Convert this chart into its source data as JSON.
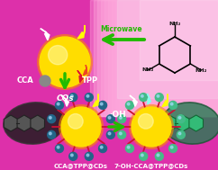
{
  "bg_magenta": "#dd30aa",
  "bg_light_pink": "#f0a8d8",
  "sphere_color": "#ffdd00",
  "sphere_highlight": "#ffffaa",
  "spike_color": "#cc1133",
  "dot_color": "#226688",
  "dot_color2": "#44bb88",
  "arrow_green": "#22bb00",
  "arrow_red": "#cc1122",
  "flash_yellow": "#ffff00",
  "flash_white": "#ffffff",
  "flash_red": "#ff4444",
  "flash_cyan": "#88ffee",
  "cos_label": "COs",
  "cca_label": "CCA",
  "tpp_label": "TPP",
  "microwave_label": "Microwave",
  "oh_label": "·OH",
  "product1_label": "CCA@TPP@CDs",
  "product2_label": "7-OH-CCA@TPP@CDs",
  "mol_dark": "#444444",
  "mol_green": "#33cc77",
  "ell_dark": "#222222",
  "ell_green": "#33aa66"
}
